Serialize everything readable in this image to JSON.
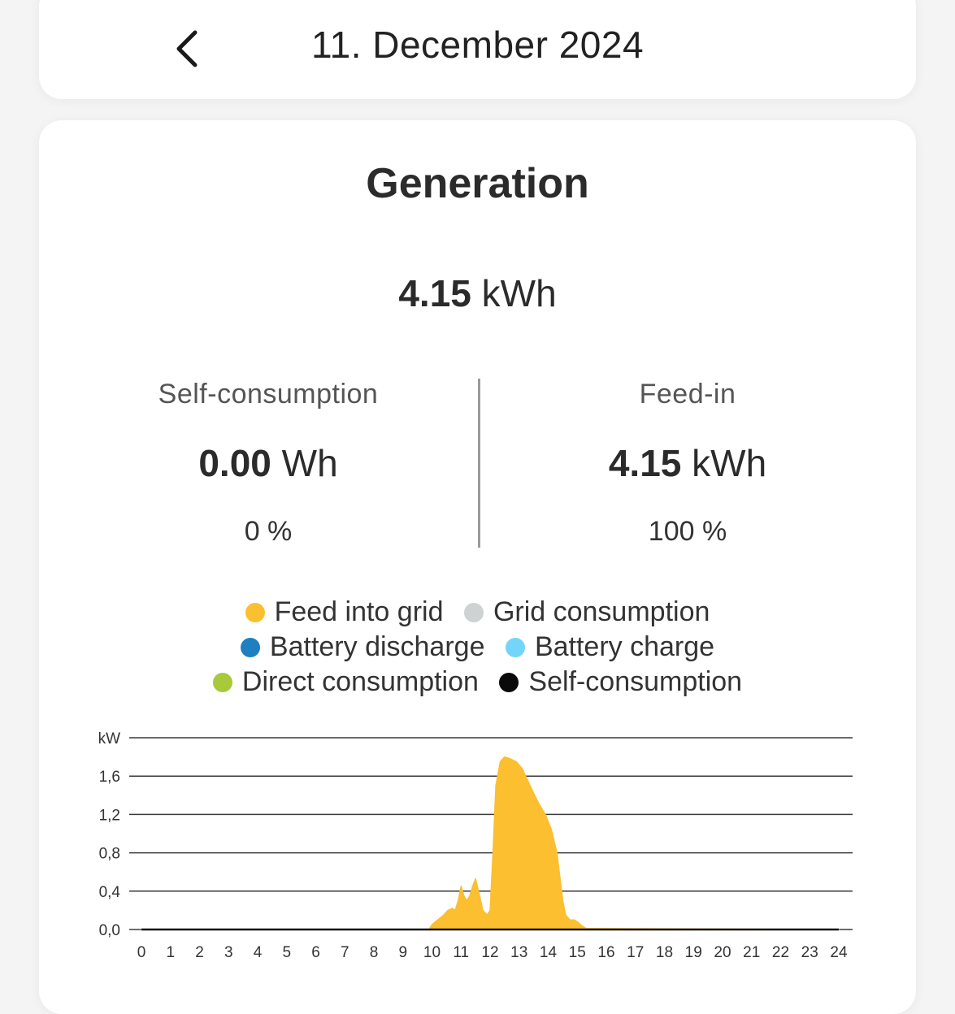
{
  "header": {
    "date": "11. December 2024"
  },
  "summary": {
    "title": "Generation",
    "total_value": "4.15",
    "total_unit": "kWh",
    "self_consumption": {
      "label": "Self-consumption",
      "value": "0.00",
      "unit": "Wh",
      "percent": "0 %"
    },
    "feed_in": {
      "label": "Feed-in",
      "value": "4.15",
      "unit": "kWh",
      "percent": "100 %"
    }
  },
  "legend": [
    {
      "label": "Feed into grid",
      "color": "#fbbf2f"
    },
    {
      "label": "Grid consumption",
      "color": "#cfd2d2"
    },
    {
      "label": "Battery discharge",
      "color": "#1f7fc0"
    },
    {
      "label": "Battery charge",
      "color": "#74d5fb"
    },
    {
      "label": "Direct consumption",
      "color": "#a8c93a"
    },
    {
      "label": "Self-consumption",
      "color": "#0a0a0a"
    }
  ],
  "chart_data": {
    "type": "area",
    "ylabel": "kW",
    "yticks": [
      "0,0",
      "0,4",
      "0,8",
      "1,2",
      "1,6"
    ],
    "ylim": [
      0,
      2.0
    ],
    "xlim": [
      0,
      24
    ],
    "xticks": [
      "0",
      "1",
      "2",
      "3",
      "4",
      "5",
      "6",
      "7",
      "8",
      "9",
      "10",
      "11",
      "12",
      "13",
      "14",
      "15",
      "16",
      "17",
      "18",
      "19",
      "20",
      "21",
      "22",
      "23",
      "24"
    ],
    "grid": true,
    "series": [
      {
        "name": "Feed into grid",
        "color": "#fbbf2f",
        "x": [
          0,
          9.9,
          10.0,
          10.2,
          10.4,
          10.55,
          10.7,
          10.8,
          10.9,
          11.0,
          11.1,
          11.2,
          11.3,
          11.4,
          11.5,
          11.6,
          11.75,
          11.9,
          12.0,
          12.1,
          12.2,
          12.35,
          12.5,
          12.7,
          12.9,
          13.1,
          13.3,
          13.5,
          13.7,
          13.9,
          14.1,
          14.3,
          14.4,
          14.5,
          14.6,
          14.75,
          14.9,
          15.0,
          15.15,
          15.3,
          24
        ],
        "values": [
          0,
          0,
          0.05,
          0.1,
          0.15,
          0.2,
          0.22,
          0.2,
          0.3,
          0.45,
          0.35,
          0.3,
          0.35,
          0.45,
          0.53,
          0.4,
          0.2,
          0.15,
          0.2,
          0.8,
          1.5,
          1.75,
          1.8,
          1.78,
          1.75,
          1.68,
          1.55,
          1.42,
          1.3,
          1.2,
          1.05,
          0.8,
          0.55,
          0.3,
          0.15,
          0.1,
          0.1,
          0.08,
          0.04,
          0.01,
          0
        ]
      }
    ]
  }
}
